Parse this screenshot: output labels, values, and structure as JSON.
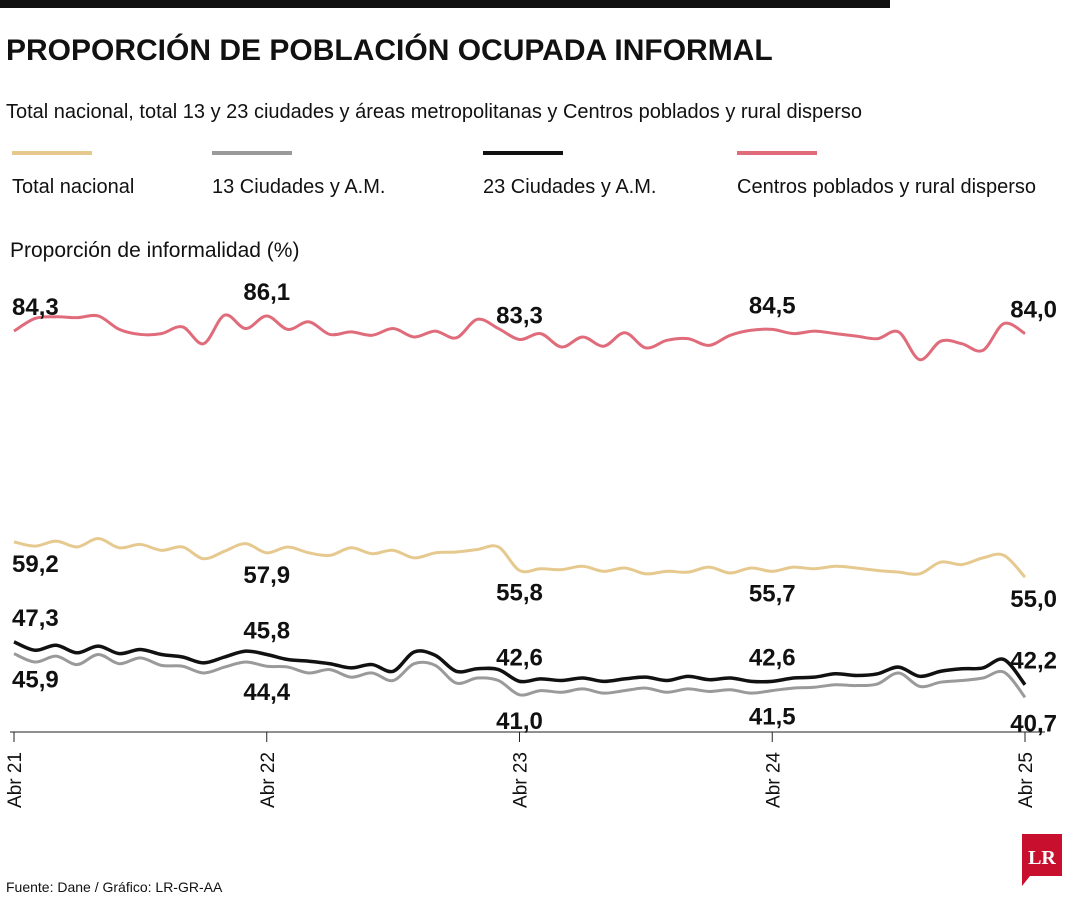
{
  "chart_data": {
    "type": "line",
    "title": "PROPORCIÓN DE POBLACIÓN OCUPADA INFORMAL",
    "subtitle": "Total nacional, total 13 y 23 ciudades y áreas metropolitanas y Centros poblados y rural disperso",
    "y_label": "Proporción de informalidad (%)",
    "source": "Fuente: Dane / Gráfico: LR-GR-AA",
    "logo": "LR",
    "ylim": [
      38,
      88
    ],
    "categories": [
      "Abr 21",
      null,
      null,
      null,
      null,
      null,
      null,
      null,
      null,
      null,
      null,
      null,
      "Abr 22",
      null,
      null,
      null,
      null,
      null,
      null,
      null,
      null,
      null,
      null,
      null,
      "Abr 23",
      null,
      null,
      null,
      null,
      null,
      null,
      null,
      null,
      null,
      null,
      null,
      "Abr 24",
      null,
      null,
      null,
      null,
      null,
      null,
      null,
      null,
      null,
      null,
      null,
      "Abr 25"
    ],
    "series": [
      {
        "name": "Total nacional",
        "color": "#e6c98f",
        "values": [
          59.2,
          58.7,
          59.3,
          58.6,
          59.6,
          58.5,
          58.9,
          58.2,
          58.6,
          57.2,
          58.1,
          59.0,
          57.9,
          58.6,
          57.9,
          57.6,
          58.5,
          57.8,
          58.2,
          57.3,
          57.9,
          58.0,
          58.3,
          58.6,
          55.8,
          56.0,
          55.9,
          56.3,
          55.7,
          56.1,
          55.4,
          55.7,
          55.6,
          56.2,
          55.5,
          56.1,
          55.7,
          56.2,
          56.0,
          56.3,
          56.1,
          55.8,
          55.6,
          55.4,
          56.8,
          56.5,
          57.3,
          57.6,
          55.0
        ],
        "value_labels": [
          "59,2",
          null,
          null,
          null,
          null,
          null,
          null,
          null,
          null,
          null,
          null,
          null,
          "57,9",
          null,
          null,
          null,
          null,
          null,
          null,
          null,
          null,
          null,
          null,
          null,
          "55,8",
          null,
          null,
          null,
          null,
          null,
          null,
          null,
          null,
          null,
          null,
          null,
          "55,7",
          null,
          null,
          null,
          null,
          null,
          null,
          null,
          null,
          null,
          null,
          null,
          "55,0"
        ]
      },
      {
        "name": "13 Ciudades y A.M.",
        "color": "#9a9a9a",
        "values": [
          45.9,
          44.9,
          45.6,
          44.6,
          45.8,
          44.7,
          45.4,
          44.5,
          44.4,
          43.6,
          44.3,
          44.9,
          44.4,
          44.3,
          43.6,
          44.0,
          43.1,
          43.6,
          42.7,
          44.7,
          44.5,
          42.4,
          43.0,
          42.7,
          41.0,
          41.5,
          41.3,
          41.7,
          41.2,
          41.5,
          41.8,
          41.3,
          41.7,
          41.4,
          41.6,
          41.2,
          41.5,
          41.8,
          41.9,
          42.2,
          42.1,
          42.3,
          43.6,
          42.0,
          42.5,
          42.7,
          43.0,
          43.7,
          40.7
        ],
        "value_labels": [
          "45,9",
          null,
          null,
          null,
          null,
          null,
          null,
          null,
          null,
          null,
          null,
          null,
          "44,4",
          null,
          null,
          null,
          null,
          null,
          null,
          null,
          null,
          null,
          null,
          null,
          "41,0",
          null,
          null,
          null,
          null,
          null,
          null,
          null,
          null,
          null,
          null,
          null,
          "41,5",
          null,
          null,
          null,
          null,
          null,
          null,
          null,
          null,
          null,
          null,
          null,
          "40,7"
        ]
      },
      {
        "name": "23 Ciudades y A.M.",
        "color": "#111111",
        "values": [
          47.3,
          46.3,
          46.9,
          46.0,
          46.8,
          45.9,
          46.4,
          45.8,
          45.5,
          44.8,
          45.5,
          46.2,
          45.8,
          45.2,
          45.0,
          44.7,
          44.2,
          44.6,
          43.8,
          46.1,
          45.7,
          43.8,
          44.1,
          44.0,
          42.6,
          42.9,
          42.7,
          43.0,
          42.6,
          42.9,
          43.1,
          42.7,
          43.2,
          42.8,
          43.0,
          42.6,
          42.6,
          43.0,
          43.1,
          43.5,
          43.3,
          43.5,
          44.3,
          43.2,
          43.8,
          44.1,
          44.2,
          45.2,
          42.2
        ],
        "value_labels": [
          "47,3",
          null,
          null,
          null,
          null,
          null,
          null,
          null,
          null,
          null,
          null,
          null,
          "45,8",
          null,
          null,
          null,
          null,
          null,
          null,
          null,
          null,
          null,
          null,
          null,
          "42,6",
          null,
          null,
          null,
          null,
          null,
          null,
          null,
          null,
          null,
          null,
          null,
          "42,6",
          null,
          null,
          null,
          null,
          null,
          null,
          null,
          null,
          null,
          null,
          null,
          "42,2"
        ]
      },
      {
        "name": "Centros poblados y rural disperso",
        "color": "#e06c7b",
        "values": [
          84.3,
          85.8,
          86.0,
          85.9,
          86.1,
          84.5,
          83.9,
          84.0,
          84.8,
          82.8,
          86.2,
          84.6,
          86.1,
          84.5,
          85.4,
          83.9,
          84.2,
          83.8,
          84.6,
          83.6,
          84.3,
          83.5,
          85.7,
          84.6,
          83.3,
          84.0,
          82.4,
          83.6,
          82.5,
          84.1,
          82.3,
          83.2,
          83.4,
          82.6,
          83.8,
          84.4,
          84.5,
          84.0,
          84.3,
          84.0,
          83.7,
          83.4,
          84.2,
          80.9,
          83.1,
          82.8,
          82.0,
          85.2,
          84.0
        ],
        "value_labels": [
          "84,3",
          null,
          null,
          null,
          null,
          null,
          null,
          null,
          null,
          null,
          null,
          null,
          "86,1",
          null,
          null,
          null,
          null,
          null,
          null,
          null,
          null,
          null,
          null,
          null,
          "83,3",
          null,
          null,
          null,
          null,
          null,
          null,
          null,
          null,
          null,
          null,
          null,
          "84,5",
          null,
          null,
          null,
          null,
          null,
          null,
          null,
          null,
          null,
          null,
          null,
          "84,0"
        ]
      }
    ]
  }
}
